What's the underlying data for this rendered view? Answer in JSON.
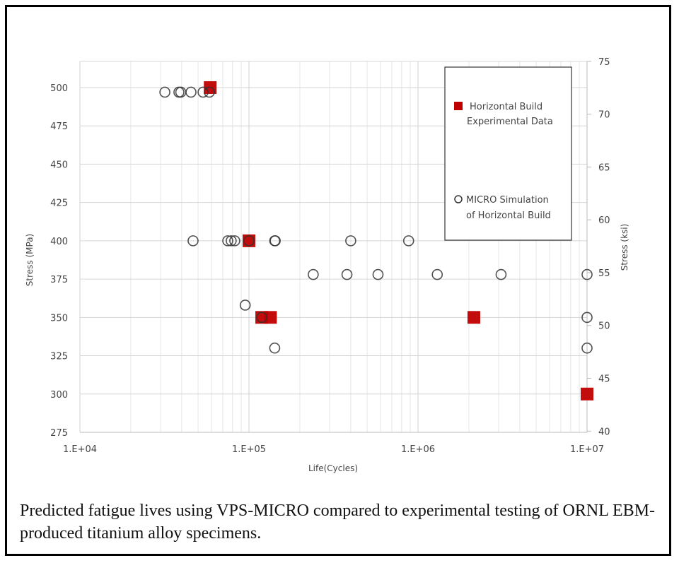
{
  "chart_data": {
    "type": "scatter",
    "xlabel": "Life(Cycles)",
    "ylabel": "Stress (MPa)",
    "ylabel_right": "Stress (ksi)",
    "xscale": "log",
    "xlim": [
      10000,
      10000000
    ],
    "xticks": [
      "1.E+04",
      "1.E+05",
      "1.E+06",
      "1.E+07"
    ],
    "ylim": [
      275,
      500
    ],
    "yticks": [
      275,
      300,
      325,
      350,
      375,
      400,
      425,
      450,
      475,
      500
    ],
    "ylim_right": [
      40,
      75
    ],
    "yticks_right": [
      40,
      45,
      50,
      55,
      60,
      65,
      70,
      75
    ],
    "grid": true,
    "legend_position": "top-right",
    "series": [
      {
        "name": "Horizontal Build Experimental Data",
        "marker": "square",
        "color": "#c00000",
        "points": [
          [
            59000,
            500
          ],
          [
            100000,
            400
          ],
          [
            119000,
            350
          ],
          [
            134000,
            350
          ],
          [
            2140000,
            350
          ],
          [
            10000000,
            300
          ]
        ]
      },
      {
        "name": "MICRO Simulation of Horizontal Build",
        "marker": "open-circle",
        "color": "#333333",
        "points": [
          [
            31800,
            497
          ],
          [
            38500,
            497
          ],
          [
            39500,
            497
          ],
          [
            45400,
            497
          ],
          [
            53500,
            497
          ],
          [
            58300,
            497
          ],
          [
            46700,
            400
          ],
          [
            74900,
            400
          ],
          [
            78500,
            400
          ],
          [
            82400,
            400
          ],
          [
            100000,
            400
          ],
          [
            142000,
            400
          ],
          [
            143000,
            400
          ],
          [
            400000,
            400
          ],
          [
            880000,
            400
          ],
          [
            240000,
            378
          ],
          [
            380000,
            378
          ],
          [
            580000,
            378
          ],
          [
            1300000,
            378
          ],
          [
            3100000,
            378
          ],
          [
            10000000,
            378
          ],
          [
            95000,
            358
          ],
          [
            119000,
            350
          ],
          [
            142000,
            330
          ],
          [
            10000000,
            350
          ],
          [
            10000000,
            330
          ]
        ]
      }
    ]
  },
  "legend": {
    "exp_line1": "Horizontal Build",
    "exp_line2": "Experimental Data",
    "sim_line1": "MICRO Simulation",
    "sim_line2": "of Horizontal Build"
  },
  "caption": "Predicted fatigue lives using VPS-MICRO compared to experimental testing of ORNL EBM-produced titanium alloy specimens."
}
